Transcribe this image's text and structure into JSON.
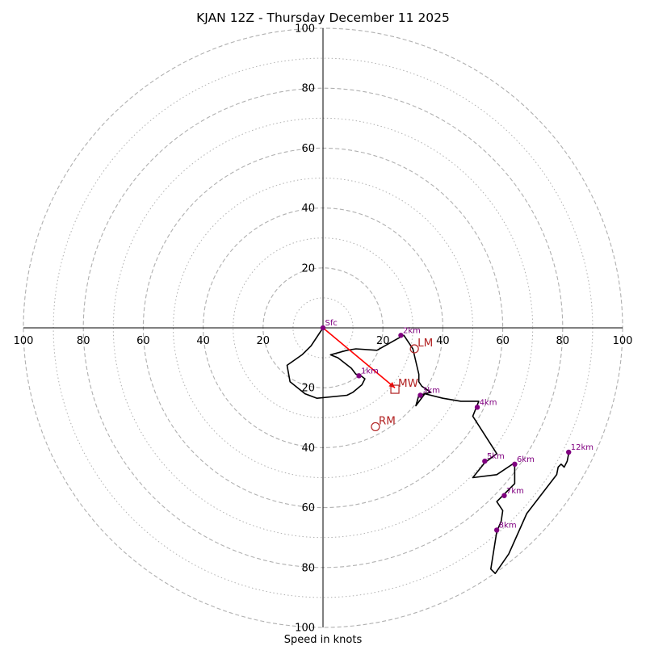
{
  "chart_data": {
    "type": "hodograph",
    "title": "KJAN 12Z - Thursday December 11 2025",
    "xlabel": "Speed in knots",
    "xlim": [
      -100,
      100
    ],
    "ylim": [
      -100,
      100
    ],
    "x_ticks": [
      "100",
      "80",
      "60",
      "40",
      "20",
      "20",
      "40",
      "60",
      "80",
      "100"
    ],
    "x_tick_values": [
      -100,
      -80,
      -60,
      -40,
      -20,
      20,
      40,
      60,
      80,
      100
    ],
    "y_ticks": [
      "100",
      "80",
      "60",
      "40",
      "20",
      "20",
      "40",
      "60",
      "80",
      "100"
    ],
    "y_tick_values": [
      100,
      80,
      60,
      40,
      20,
      -20,
      -40,
      -60,
      -80,
      -100
    ],
    "rings_dashed": [
      20,
      40,
      60,
      80,
      100
    ],
    "rings_dotted": [
      10,
      30,
      50,
      70,
      90
    ],
    "grid": true,
    "hodograph_line": {
      "color": "#000000",
      "points": [
        [
          0,
          0
        ],
        [
          -4,
          -6
        ],
        [
          -7,
          -9
        ],
        [
          -12,
          -12.5
        ],
        [
          -11,
          -18
        ],
        [
          -6,
          -22
        ],
        [
          -2,
          -23.5
        ],
        [
          8,
          -22.5
        ],
        [
          10,
          -21.5
        ],
        [
          13,
          -19
        ],
        [
          14,
          -17
        ],
        [
          12,
          -15.5
        ],
        [
          11,
          -15.5
        ],
        [
          9.5,
          -13.5
        ],
        [
          5,
          -10
        ],
        [
          2.5,
          -9
        ],
        [
          8,
          -7.5
        ],
        [
          11,
          -7
        ],
        [
          18,
          -7.5
        ],
        [
          26,
          -3
        ],
        [
          27,
          -2.5
        ],
        [
          30,
          -7
        ],
        [
          32,
          -15.5
        ],
        [
          32,
          -18
        ],
        [
          33,
          -19.5
        ],
        [
          36,
          -21.5
        ],
        [
          32,
          -22.5
        ],
        [
          31,
          -26
        ],
        [
          34,
          -22
        ],
        [
          40,
          -23.5
        ],
        [
          46,
          -24.5
        ],
        [
          52,
          -24.5
        ],
        [
          51,
          -27
        ],
        [
          50,
          -29.5
        ],
        [
          58,
          -42
        ],
        [
          54,
          -45
        ],
        [
          50,
          -50
        ],
        [
          58,
          -49
        ],
        [
          64,
          -45
        ],
        [
          64,
          -52
        ],
        [
          60,
          -56
        ],
        [
          58,
          -58
        ],
        [
          60,
          -61
        ],
        [
          59.5,
          -64.5
        ],
        [
          58,
          -68
        ],
        [
          56,
          -80.5
        ],
        [
          57.5,
          -82
        ],
        [
          62,
          -75.5
        ],
        [
          68,
          -62
        ],
        [
          78,
          -49
        ],
        [
          78.5,
          -46.5
        ],
        [
          79.5,
          -45.5
        ],
        [
          80.5,
          -46.5
        ],
        [
          81.5,
          -44.5
        ],
        [
          82,
          -42
        ]
      ]
    },
    "height_labels": [
      {
        "label": "Sfc",
        "u": 0,
        "v": 0
      },
      {
        "label": "1km",
        "u": 12,
        "v": -16
      },
      {
        "label": "2km",
        "u": 26,
        "v": -2.5
      },
      {
        "label": "3km",
        "u": 32.5,
        "v": -22.5
      },
      {
        "label": "4km",
        "u": 51.5,
        "v": -26.5
      },
      {
        "label": "5km",
        "u": 54,
        "v": -44.5
      },
      {
        "label": "6km",
        "u": 64,
        "v": -45.5
      },
      {
        "label": "7km",
        "u": 60.5,
        "v": -56
      },
      {
        "label": "8km",
        "u": 58,
        "v": -67.5
      },
      {
        "label": "12km",
        "u": 82,
        "v": -41.5
      }
    ],
    "shear_vector": {
      "from": [
        0,
        0
      ],
      "to": [
        24,
        -20
      ],
      "color": "#ff0000"
    },
    "storm_motion": [
      {
        "label": "LM",
        "u": 30.5,
        "v": -7,
        "marker": "circle"
      },
      {
        "label": "MW",
        "u": 24,
        "v": -20.5,
        "marker": "square"
      },
      {
        "label": "RM",
        "u": 17.5,
        "v": -33,
        "marker": "circle"
      }
    ],
    "colors": {
      "line": "#000000",
      "markers": "#800080",
      "storm_motion": "#b22222",
      "shear_vector": "#ff0000",
      "grid": "#b0b0b0"
    }
  }
}
